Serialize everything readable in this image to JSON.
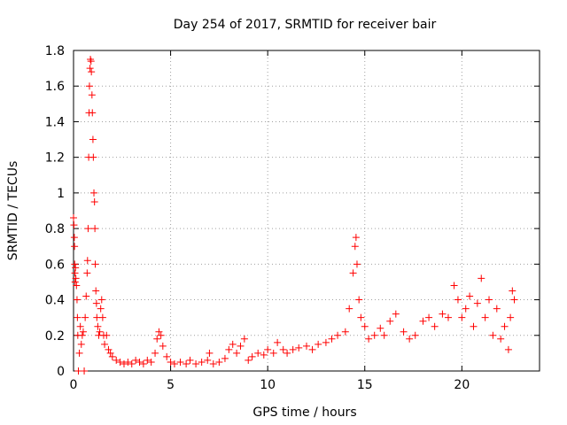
{
  "chart_data": {
    "type": "scatter",
    "title": "Day 254 of 2017, SRMTID for receiver bair",
    "xlabel": "GPS time / hours",
    "ylabel": "SRMTID / TECUs",
    "xlim": [
      0,
      24
    ],
    "ylim": [
      0,
      1.8
    ],
    "x_ticks": [
      0,
      5,
      10,
      15,
      20
    ],
    "x_tick_labels": [
      "0",
      "5",
      "10",
      "15",
      "20"
    ],
    "y_ticks": [
      0,
      0.2,
      0.4,
      0.6,
      0.8,
      1.0,
      1.2,
      1.4,
      1.6,
      1.8
    ],
    "y_tick_labels": [
      "0",
      "0.2",
      "0.4",
      "0.6",
      "0.8",
      "1",
      "1.2",
      "1.4",
      "1.6",
      "1.8"
    ],
    "grid": true,
    "marker": "+",
    "color": "#ff0000",
    "series": [
      {
        "name": "SRMTID",
        "points": [
          [
            0.0,
            0.86
          ],
          [
            0.02,
            0.82
          ],
          [
            0.04,
            0.75
          ],
          [
            0.05,
            0.7
          ],
          [
            0.06,
            0.6
          ],
          [
            0.07,
            0.55
          ],
          [
            0.08,
            0.5
          ],
          [
            0.1,
            0.58
          ],
          [
            0.12,
            0.52
          ],
          [
            0.15,
            0.48
          ],
          [
            0.18,
            0.4
          ],
          [
            0.2,
            0.3
          ],
          [
            0.22,
            0.2
          ],
          [
            0.25,
            0.0
          ],
          [
            0.3,
            0.1
          ],
          [
            0.35,
            0.25
          ],
          [
            0.4,
            0.15
          ],
          [
            0.45,
            0.2
          ],
          [
            0.5,
            0.22
          ],
          [
            0.55,
            0.0
          ],
          [
            0.6,
            0.3
          ],
          [
            0.65,
            0.42
          ],
          [
            0.7,
            0.55
          ],
          [
            0.72,
            0.62
          ],
          [
            0.75,
            0.8
          ],
          [
            0.78,
            1.2
          ],
          [
            0.8,
            1.45
          ],
          [
            0.82,
            1.6
          ],
          [
            0.85,
            1.7
          ],
          [
            0.87,
            1.75
          ],
          [
            0.9,
            1.74
          ],
          [
            0.92,
            1.68
          ],
          [
            0.95,
            1.55
          ],
          [
            0.97,
            1.45
          ],
          [
            1.0,
            1.3
          ],
          [
            1.02,
            1.2
          ],
          [
            1.05,
            1.0
          ],
          [
            1.08,
            0.95
          ],
          [
            1.1,
            0.8
          ],
          [
            1.12,
            0.6
          ],
          [
            1.15,
            0.45
          ],
          [
            1.18,
            0.38
          ],
          [
            1.2,
            0.3
          ],
          [
            1.25,
            0.25
          ],
          [
            1.3,
            0.2
          ],
          [
            1.35,
            0.22
          ],
          [
            1.4,
            0.35
          ],
          [
            1.45,
            0.4
          ],
          [
            1.5,
            0.3
          ],
          [
            1.55,
            0.2
          ],
          [
            1.6,
            0.15
          ],
          [
            1.7,
            0.2
          ],
          [
            1.8,
            0.12
          ],
          [
            1.9,
            0.1
          ],
          [
            2.0,
            0.08
          ],
          [
            2.2,
            0.06
          ],
          [
            2.4,
            0.05
          ],
          [
            2.6,
            0.04
          ],
          [
            2.8,
            0.05
          ],
          [
            3.0,
            0.04
          ],
          [
            3.2,
            0.06
          ],
          [
            3.4,
            0.05
          ],
          [
            3.6,
            0.04
          ],
          [
            3.8,
            0.06
          ],
          [
            4.0,
            0.05
          ],
          [
            4.2,
            0.1
          ],
          [
            4.3,
            0.18
          ],
          [
            4.4,
            0.22
          ],
          [
            4.5,
            0.2
          ],
          [
            4.6,
            0.14
          ],
          [
            4.8,
            0.08
          ],
          [
            5.0,
            0.05
          ],
          [
            5.2,
            0.04
          ],
          [
            5.5,
            0.05
          ],
          [
            5.8,
            0.04
          ],
          [
            6.0,
            0.06
          ],
          [
            6.3,
            0.04
          ],
          [
            6.6,
            0.05
          ],
          [
            6.9,
            0.06
          ],
          [
            7.0,
            0.1
          ],
          [
            7.2,
            0.04
          ],
          [
            7.5,
            0.05
          ],
          [
            7.8,
            0.07
          ],
          [
            8.0,
            0.12
          ],
          [
            8.2,
            0.15
          ],
          [
            8.4,
            0.1
          ],
          [
            8.6,
            0.14
          ],
          [
            8.8,
            0.18
          ],
          [
            9.0,
            0.06
          ],
          [
            9.2,
            0.08
          ],
          [
            9.5,
            0.1
          ],
          [
            9.8,
            0.09
          ],
          [
            10.0,
            0.12
          ],
          [
            10.3,
            0.1
          ],
          [
            10.5,
            0.16
          ],
          [
            10.8,
            0.12
          ],
          [
            11.0,
            0.1
          ],
          [
            11.3,
            0.12
          ],
          [
            11.6,
            0.13
          ],
          [
            12.0,
            0.14
          ],
          [
            12.3,
            0.12
          ],
          [
            12.6,
            0.15
          ],
          [
            13.0,
            0.16
          ],
          [
            13.3,
            0.18
          ],
          [
            13.6,
            0.2
          ],
          [
            14.0,
            0.22
          ],
          [
            14.2,
            0.35
          ],
          [
            14.4,
            0.55
          ],
          [
            14.5,
            0.7
          ],
          [
            14.55,
            0.75
          ],
          [
            14.6,
            0.6
          ],
          [
            14.7,
            0.4
          ],
          [
            14.8,
            0.3
          ],
          [
            15.0,
            0.25
          ],
          [
            15.2,
            0.18
          ],
          [
            15.5,
            0.2
          ],
          [
            15.8,
            0.24
          ],
          [
            16.0,
            0.2
          ],
          [
            16.3,
            0.28
          ],
          [
            16.6,
            0.32
          ],
          [
            17.0,
            0.22
          ],
          [
            17.3,
            0.18
          ],
          [
            17.6,
            0.2
          ],
          [
            18.0,
            0.28
          ],
          [
            18.3,
            0.3
          ],
          [
            18.6,
            0.25
          ],
          [
            19.0,
            0.32
          ],
          [
            19.3,
            0.3
          ],
          [
            19.6,
            0.48
          ],
          [
            19.8,
            0.4
          ],
          [
            20.0,
            0.3
          ],
          [
            20.2,
            0.35
          ],
          [
            20.4,
            0.42
          ],
          [
            20.6,
            0.25
          ],
          [
            20.8,
            0.38
          ],
          [
            21.0,
            0.52
          ],
          [
            21.2,
            0.3
          ],
          [
            21.4,
            0.4
          ],
          [
            21.6,
            0.2
          ],
          [
            21.8,
            0.35
          ],
          [
            22.0,
            0.18
          ],
          [
            22.2,
            0.25
          ],
          [
            22.4,
            0.12
          ],
          [
            22.5,
            0.3
          ],
          [
            22.6,
            0.45
          ],
          [
            22.7,
            0.4
          ]
        ]
      }
    ]
  }
}
